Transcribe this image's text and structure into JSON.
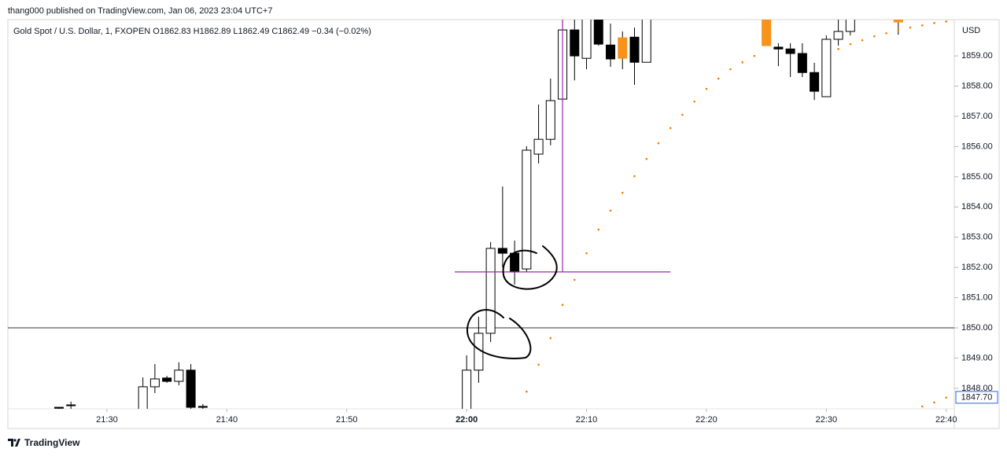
{
  "header": "thang000 published on TradingView.com, Jan 06, 2023 23:04 UTC+7",
  "footer": "TradingView",
  "chart_data": {
    "type": "candlestick",
    "title": "Gold Spot / U.S. Dollar, 1, FXOPEN  O1862.83  H1862.89  L1862.49  C1862.49  −0.34 (−0.02%)",
    "currency": "USD",
    "x": [
      "21:26",
      "21:27",
      "21:33",
      "21:34",
      "21:35",
      "21:36",
      "21:37",
      "21:38",
      "22:00",
      "22:01",
      "22:02",
      "22:03",
      "22:04",
      "22:05",
      "22:06",
      "22:07",
      "22:08",
      "22:09",
      "22:10",
      "22:11",
      "22:12",
      "22:13",
      "22:14",
      "22:15",
      "22:25",
      "22:26",
      "22:27",
      "22:28",
      "22:29",
      "22:30",
      "22:31",
      "22:32",
      "22:36"
    ],
    "open": [
      1847.37,
      1847.45,
      1847.2,
      1848.05,
      1848.34,
      1848.23,
      1848.6,
      1847.4,
      1847.2,
      1848.6,
      1849.82,
      1852.63,
      1852.47,
      1851.95,
      1855.75,
      1856.24,
      1857.57,
      1859.86,
      1858.92,
      1860.4,
      1859.36,
      1858.92,
      1859.62,
      1858.79,
      1860.4,
      1859.29,
      1859.23,
      1859.08,
      1858.45,
      1857.65,
      1859.55,
      1859.81,
      1860.4
    ],
    "high": [
      1847.37,
      1847.56,
      1848.36,
      1848.8,
      1848.41,
      1848.86,
      1848.8,
      1847.48,
      1849.09,
      1850.37,
      1852.84,
      1854.68,
      1852.89,
      1856.01,
      1857.39,
      1858.25,
      1860.4,
      1860.4,
      1860.4,
      1860.4,
      1860.07,
      1859.81,
      1859.94,
      1860.4,
      1860.4,
      1859.42,
      1859.42,
      1859.42,
      1858.77,
      1859.68,
      1860.4,
      1860.4,
      1860.4
    ],
    "low": [
      1847.32,
      1847.32,
      1847.2,
      1847.84,
      1848.18,
      1848.1,
      1847.2,
      1847.32,
      1847.2,
      1848.18,
      1849.53,
      1852.0,
      1851.43,
      1851.85,
      1855.44,
      1856.04,
      1857.52,
      1858.19,
      1858.56,
      1859.34,
      1858.64,
      1858.56,
      1858.04,
      1858.79,
      1859.34,
      1858.66,
      1858.3,
      1858.3,
      1857.54,
      1857.65,
      1859.34,
      1859.68,
      1859.7
    ],
    "close": [
      1847.34,
      1847.45,
      1848.05,
      1848.31,
      1848.23,
      1848.6,
      1847.37,
      1847.37,
      1848.6,
      1849.82,
      1852.63,
      1852.47,
      1851.85,
      1855.88,
      1856.24,
      1857.52,
      1859.86,
      1859.0,
      1860.4,
      1859.39,
      1858.9,
      1859.6,
      1858.79,
      1860.4,
      1859.34,
      1859.23,
      1859.08,
      1858.45,
      1857.83,
      1859.55,
      1859.81,
      1860.4,
      1860.12
    ],
    "colors": [
      "#000000",
      "#000000",
      "#ffffff",
      "#ffffff",
      "#000000",
      "#ffffff",
      "#000000",
      "#000000",
      "#ffffff",
      "#ffffff",
      "#ffffff",
      "#000000",
      "#000000",
      "#ffffff",
      "#ffffff",
      "#ffffff",
      "#ffffff",
      "#000000",
      "#ffffff",
      "#000000",
      "#000000",
      "#f7931a",
      "#000000",
      "#ffffff",
      "#f7931a",
      "#000000",
      "#000000",
      "#000000",
      "#000000",
      "#ffffff",
      "#ffffff",
      "#ffffff",
      "#f7931a"
    ],
    "dots": [
      {
        "color": "#f57c00",
        "x": [
          "22:05",
          "22:06",
          "22:07",
          "22:08",
          "22:09",
          "22:10",
          "22:11",
          "22:12",
          "22:13",
          "22:14",
          "22:15",
          "22:16",
          "22:17",
          "22:18",
          "22:19",
          "22:20",
          "22:21",
          "22:22",
          "22:23",
          "22:24",
          "22:31",
          "22:32",
          "22:33",
          "22:34",
          "22:35",
          "22:36",
          "22:37",
          "22:38",
          "22:39",
          "22:40"
        ],
        "values": [
          1847.89,
          1848.78,
          1849.66,
          1850.76,
          1851.59,
          1852.47,
          1853.25,
          1853.88,
          1854.47,
          1855.02,
          1855.59,
          1856.11,
          1856.61,
          1857.05,
          1857.49,
          1857.91,
          1858.25,
          1858.56,
          1858.79,
          1859.0,
          1859.23,
          1859.39,
          1859.52,
          1859.65,
          1859.75,
          1859.86,
          1859.94,
          1860.01,
          1860.09,
          1860.14
        ]
      },
      {
        "color": "#f57c00",
        "x": [
          "22:38",
          "22:39",
          "22:40"
        ],
        "values": [
          1847.4,
          1847.53,
          1847.69
        ]
      }
    ],
    "hline": {
      "value": 1850,
      "color": "#333333"
    },
    "drawing": {
      "color": "#9c27b0",
      "value": 1851.85,
      "x": [
        "21:59",
        "22:17"
      ],
      "vx": "22:08"
    },
    "last_price": {
      "value": 1847.7,
      "label": "1847.70",
      "color": "#2962ff"
    },
    "xlim": [
      "21:22",
      "22:41"
    ],
    "ylim": [
      1847.32,
      1860.2
    ],
    "xticks": [
      "21:30",
      "21:40",
      "21:50",
      "22:00",
      "22:10",
      "22:20",
      "22:30",
      "22:40"
    ],
    "yticks": [
      {
        "value": 1848,
        "label": "1848.00"
      },
      {
        "value": 1849,
        "label": "1849.00"
      },
      {
        "value": 1850,
        "label": "1850.00"
      },
      {
        "value": 1851,
        "label": "1851.00"
      },
      {
        "value": 1852,
        "label": "1852.00"
      },
      {
        "value": 1853,
        "label": "1853.00"
      },
      {
        "value": 1854,
        "label": "1854.00"
      },
      {
        "value": 1855,
        "label": "1855.00"
      },
      {
        "value": 1856,
        "label": "1856.00"
      },
      {
        "value": 1857,
        "label": "1857.00"
      },
      {
        "value": 1858,
        "label": "1858.00"
      },
      {
        "value": 1859,
        "label": "1859.00"
      }
    ]
  }
}
